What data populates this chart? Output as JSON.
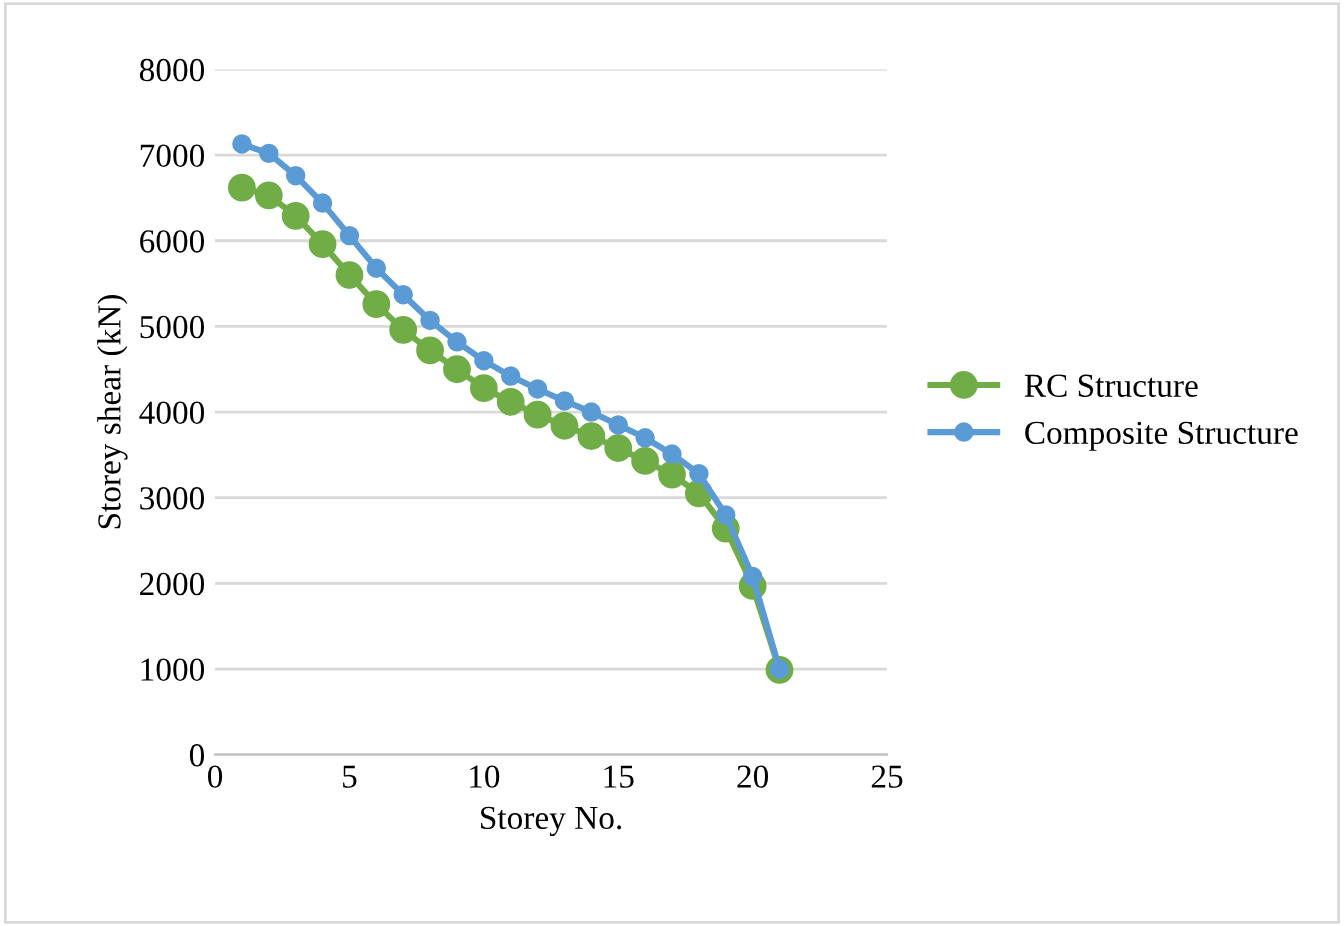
{
  "chart_data": {
    "type": "line",
    "xlabel": "Storey No.",
    "ylabel": "Storey shear (kN)",
    "x": [
      1,
      2,
      3,
      4,
      5,
      6,
      7,
      8,
      9,
      10,
      11,
      12,
      13,
      14,
      15,
      16,
      17,
      18,
      19,
      20,
      21
    ],
    "series": [
      {
        "name": "RC Structure",
        "color": "#70ad47",
        "values": [
          6620,
          6530,
          6290,
          5960,
          5600,
          5260,
          4960,
          4720,
          4500,
          4280,
          4120,
          3970,
          3840,
          3720,
          3580,
          3430,
          3270,
          3050,
          2640,
          1970,
          990
        ]
      },
      {
        "name": "Composite Structure",
        "color": "#5b9bd5",
        "values": [
          7130,
          7020,
          6760,
          6440,
          6060,
          5680,
          5370,
          5070,
          4820,
          4600,
          4420,
          4270,
          4130,
          4000,
          3850,
          3700,
          3510,
          3280,
          2800,
          2080,
          1000
        ]
      }
    ],
    "xlim": [
      0,
      25
    ],
    "xticks": [
      0,
      5,
      10,
      15,
      20,
      25
    ],
    "ylim": [
      0,
      8000
    ],
    "yticks": [
      0,
      1000,
      2000,
      3000,
      4000,
      5000,
      6000,
      7000,
      8000
    ],
    "grid": "y",
    "legend": "right",
    "marker": "circle",
    "line_style": "solid"
  }
}
